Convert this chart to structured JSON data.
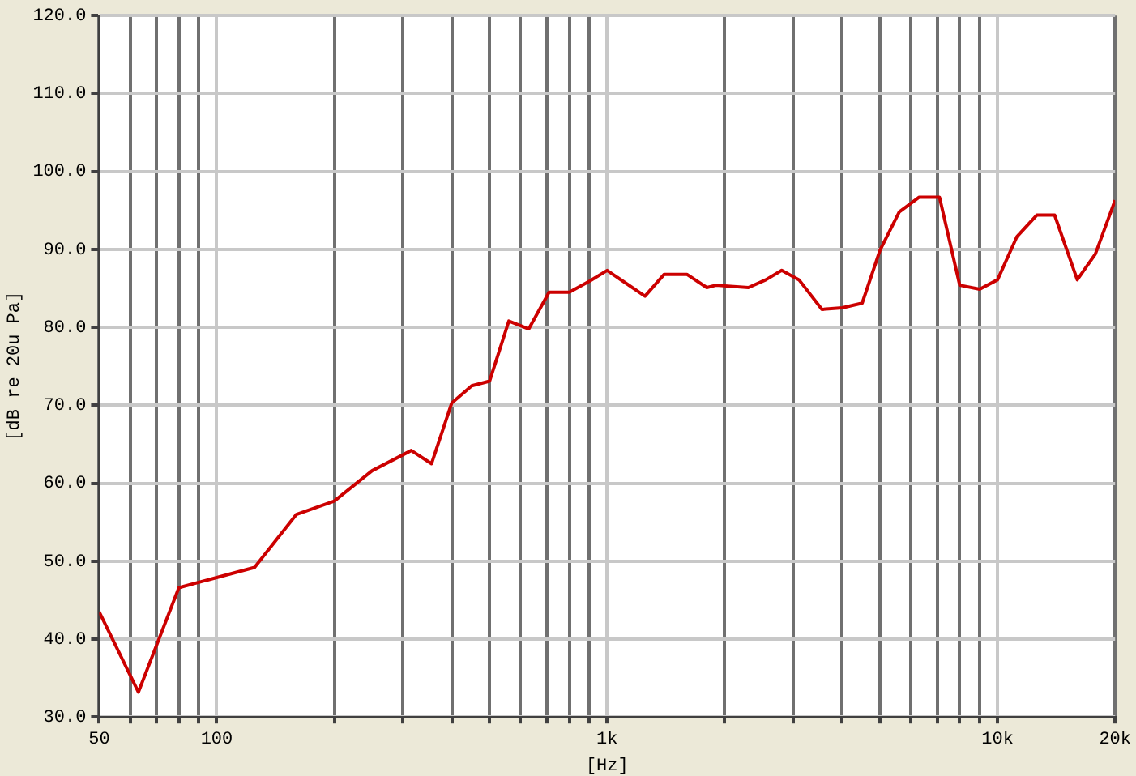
{
  "chart_data": {
    "type": "line",
    "xlabel": "[Hz]",
    "ylabel": "[dB re 20u Pa]",
    "x": [
      50,
      63,
      80,
      100,
      125,
      160,
      200,
      250,
      315,
      355,
      400,
      450,
      500,
      560,
      630,
      710,
      800,
      900,
      1000,
      1250,
      1400,
      1600,
      1800,
      1900,
      2300,
      2550,
      2800,
      3100,
      3550,
      4000,
      4500,
      5000,
      5600,
      6300,
      7100,
      8000,
      9000,
      10000,
      11200,
      12600,
      14000,
      16000,
      17800,
      20000
    ],
    "series": [
      {
        "color": "#cc0000",
        "values": [
          43.5,
          33.2,
          46.6,
          47.9,
          49.2,
          56.0,
          57.7,
          61.6,
          64.2,
          62.5,
          70.3,
          72.5,
          73.1,
          80.8,
          79.8,
          84.5,
          84.5,
          85.9,
          87.3,
          84.0,
          86.8,
          86.8,
          85.1,
          85.4,
          85.1,
          86.1,
          87.3,
          86.1,
          82.3,
          82.5,
          83.1,
          89.9,
          94.8,
          96.7,
          96.7,
          85.4,
          84.9,
          86.1,
          91.6,
          94.4,
          94.4,
          86.1,
          89.4,
          96.3
        ]
      }
    ],
    "log": "x",
    "xlim": [
      50,
      20000
    ],
    "ylim": [
      30,
      120
    ],
    "xticks": [
      50,
      {
        "value": 60,
        "label": null
      },
      {
        "value": 70,
        "label": null
      },
      {
        "value": 80,
        "label": null
      },
      {
        "value": 90,
        "label": null
      },
      100,
      {
        "value": 200,
        "label": null
      },
      {
        "value": 300,
        "label": null
      },
      {
        "value": 400,
        "label": null
      },
      {
        "value": 500,
        "label": null
      },
      {
        "value": 600,
        "label": null
      },
      {
        "value": 700,
        "label": null
      },
      {
        "value": 800,
        "label": null
      },
      {
        "value": 900,
        "label": null
      },
      {
        "value": 1000,
        "label": "1k"
      },
      {
        "value": 2000,
        "label": null
      },
      {
        "value": 3000,
        "label": null
      },
      {
        "value": 4000,
        "label": null
      },
      {
        "value": 5000,
        "label": null
      },
      {
        "value": 6000,
        "label": null
      },
      {
        "value": 7000,
        "label": null
      },
      {
        "value": 8000,
        "label": null
      },
      {
        "value": 9000,
        "label": null
      },
      {
        "value": 10000,
        "label": "10k"
      },
      {
        "value": 20000,
        "label": "20k"
      }
    ],
    "yticks": [
      {
        "value": 30,
        "label": "30.0"
      },
      {
        "value": 40,
        "label": "40.0"
      },
      {
        "value": 50,
        "label": "50.0"
      },
      {
        "value": 60,
        "label": "60.0"
      },
      {
        "value": 70,
        "label": "70.0"
      },
      {
        "value": 80,
        "label": "80.0"
      },
      {
        "value": 90,
        "label": "90.0"
      },
      {
        "value": 100,
        "label": "100.0"
      },
      {
        "value": 110,
        "label": "110.0"
      },
      {
        "value": 120,
        "label": "120.0"
      }
    ],
    "grid": true,
    "legend": false,
    "marker": "none",
    "line_style": "solid"
  }
}
